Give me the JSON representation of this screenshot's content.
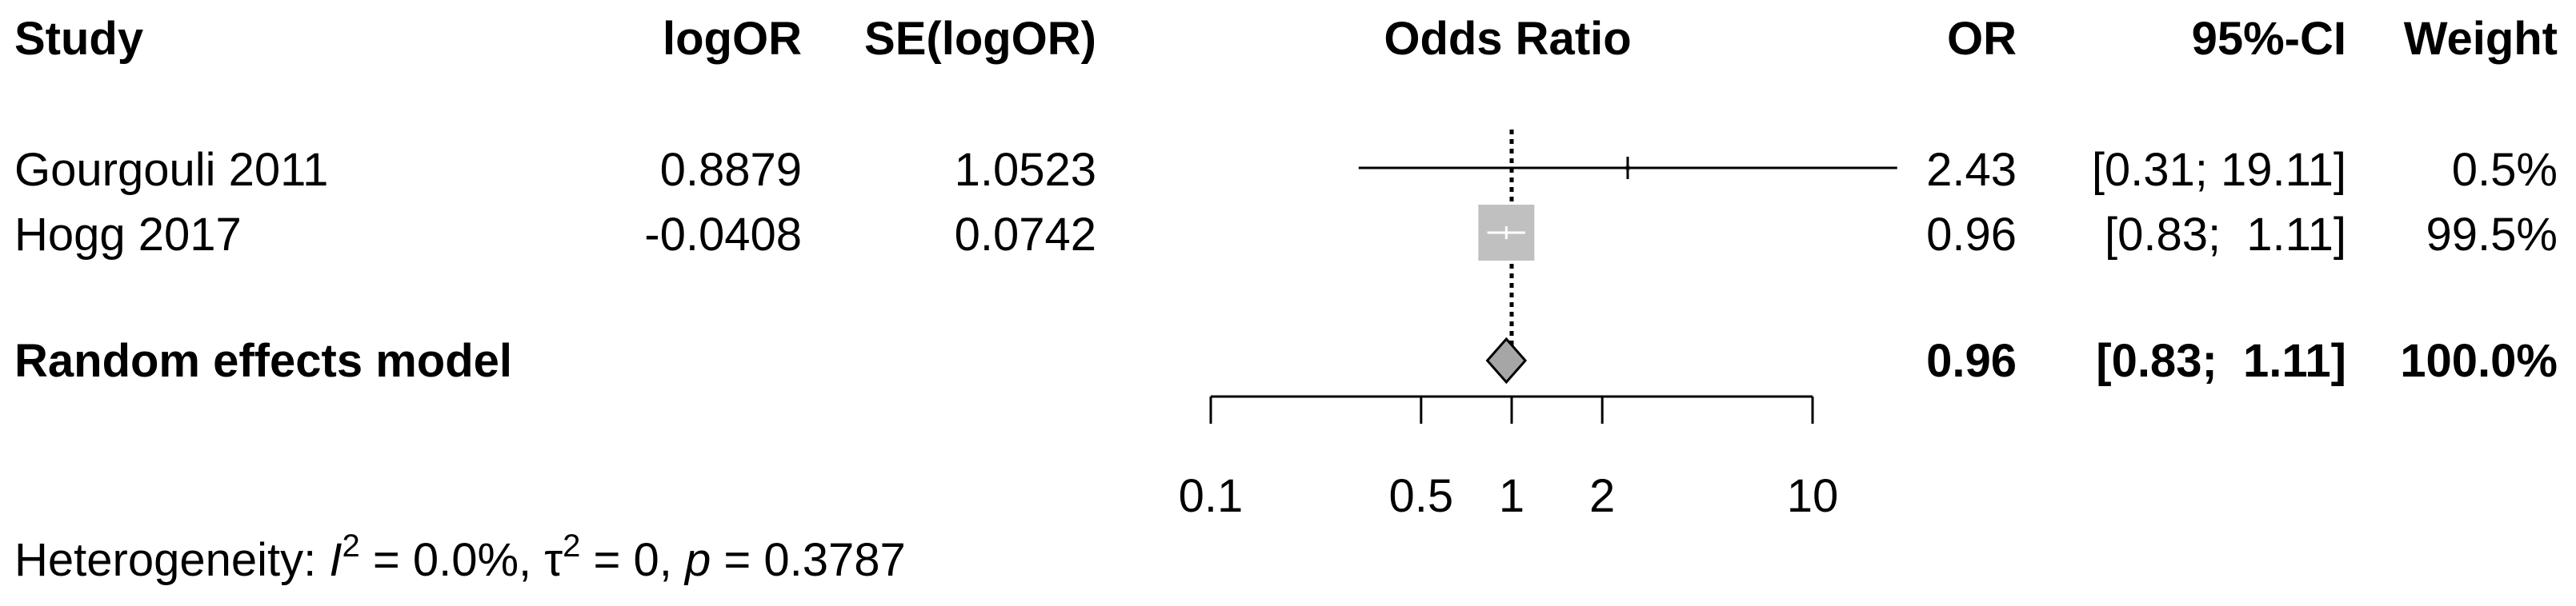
{
  "columns": {
    "study": "Study",
    "logor": "logOR",
    "se": "SE(logOR)",
    "odds_ratio": "Odds Ratio",
    "or": "OR",
    "ci": "95%-CI",
    "weight": "Weight"
  },
  "studies": [
    {
      "name": "Gourgouli 2011",
      "logor": "0.8879",
      "se": "1.0523",
      "or_text": "2.43",
      "ci_text": "[0.31; 19.11]",
      "weight_text": "0.5%"
    },
    {
      "name": "Hogg 2017",
      "logor": "-0.0408",
      "se": "0.0742",
      "or_text": "0.96",
      "ci_text": "[0.83;  1.11]",
      "weight_text": "99.5%"
    }
  ],
  "summary": {
    "label": "Random effects model",
    "or_text": "0.96",
    "ci_text": "[0.83;  1.11]",
    "weight_text": "100.0%"
  },
  "heterogeneity": {
    "prefix": "Heterogeneity: ",
    "i2_symbol": "I",
    "i2_value": " = 0.0%, ",
    "tau2_symbol": "τ",
    "tau2_value": " = 0, ",
    "p_symbol": "p",
    "p_value": " = 0.3787",
    "superscript": "2"
  },
  "chart_data": {
    "type": "forest",
    "title": "Odds Ratio",
    "xscale": "log",
    "xlim": [
      0.1,
      10
    ],
    "ticks": [
      0.1,
      0.5,
      1,
      2,
      10
    ],
    "tick_labels": [
      "0.1",
      "0.5",
      "1",
      "2",
      "10"
    ],
    "null_value": 1,
    "studies": [
      {
        "name": "Gourgouli 2011",
        "or": 2.43,
        "lower": 0.31,
        "upper": 19.11,
        "weight": 0.5
      },
      {
        "name": "Hogg 2017",
        "or": 0.96,
        "lower": 0.83,
        "upper": 1.11,
        "weight": 99.5
      }
    ],
    "summary": {
      "label": "Random effects model",
      "or": 0.96,
      "lower": 0.83,
      "upper": 1.11
    },
    "colors": {
      "box": "#c0c0c0",
      "diamond": "#a6a6a6",
      "line": "#000000",
      "box_inner_line": "#ffffff"
    }
  }
}
